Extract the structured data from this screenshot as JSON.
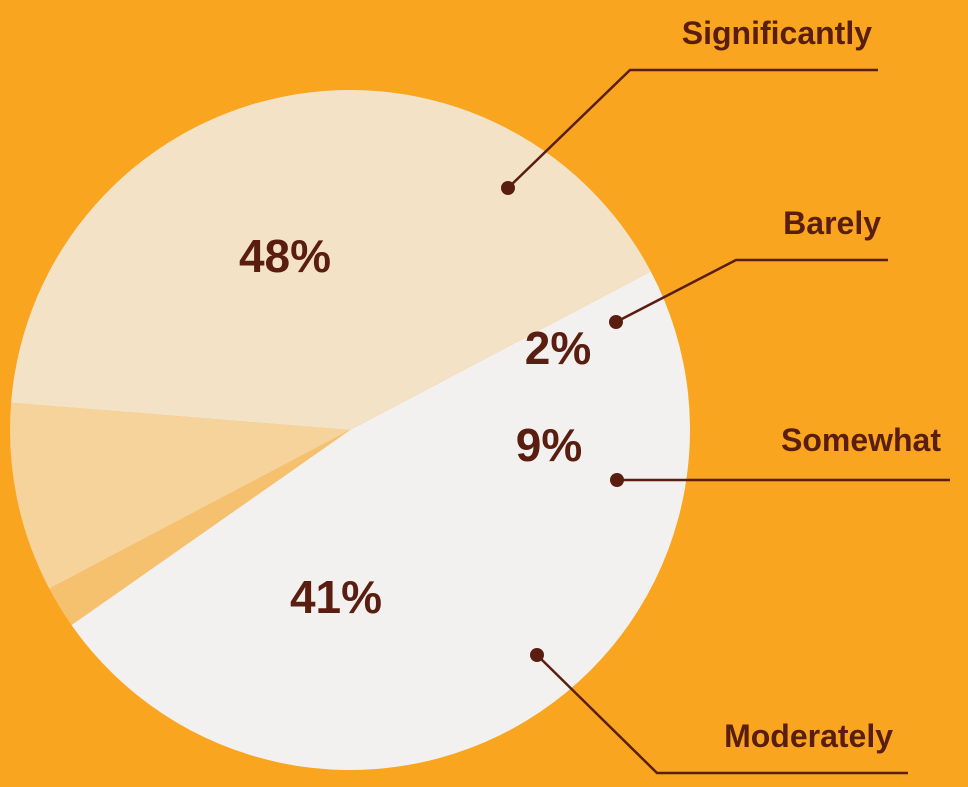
{
  "chart_data": {
    "type": "pie",
    "slices": [
      {
        "label": "Significantly",
        "value": 48,
        "value_label": "48%",
        "color": "#F3F0F0"
      },
      {
        "label": "Barely",
        "value": 2,
        "value_label": "2%",
        "color": "#F6C16F"
      },
      {
        "label": "Somewhat",
        "value": 9,
        "value_label": "9%",
        "color": "#F6D39B"
      },
      {
        "label": "Moderately",
        "value": 41,
        "value_label": "41%",
        "color": "#F3E2C6"
      }
    ],
    "legend": "callout-lines-right"
  },
  "colors": {
    "background": "#F9A51F",
    "text": "#5A1E10",
    "leader_line": "#5A1E10"
  }
}
